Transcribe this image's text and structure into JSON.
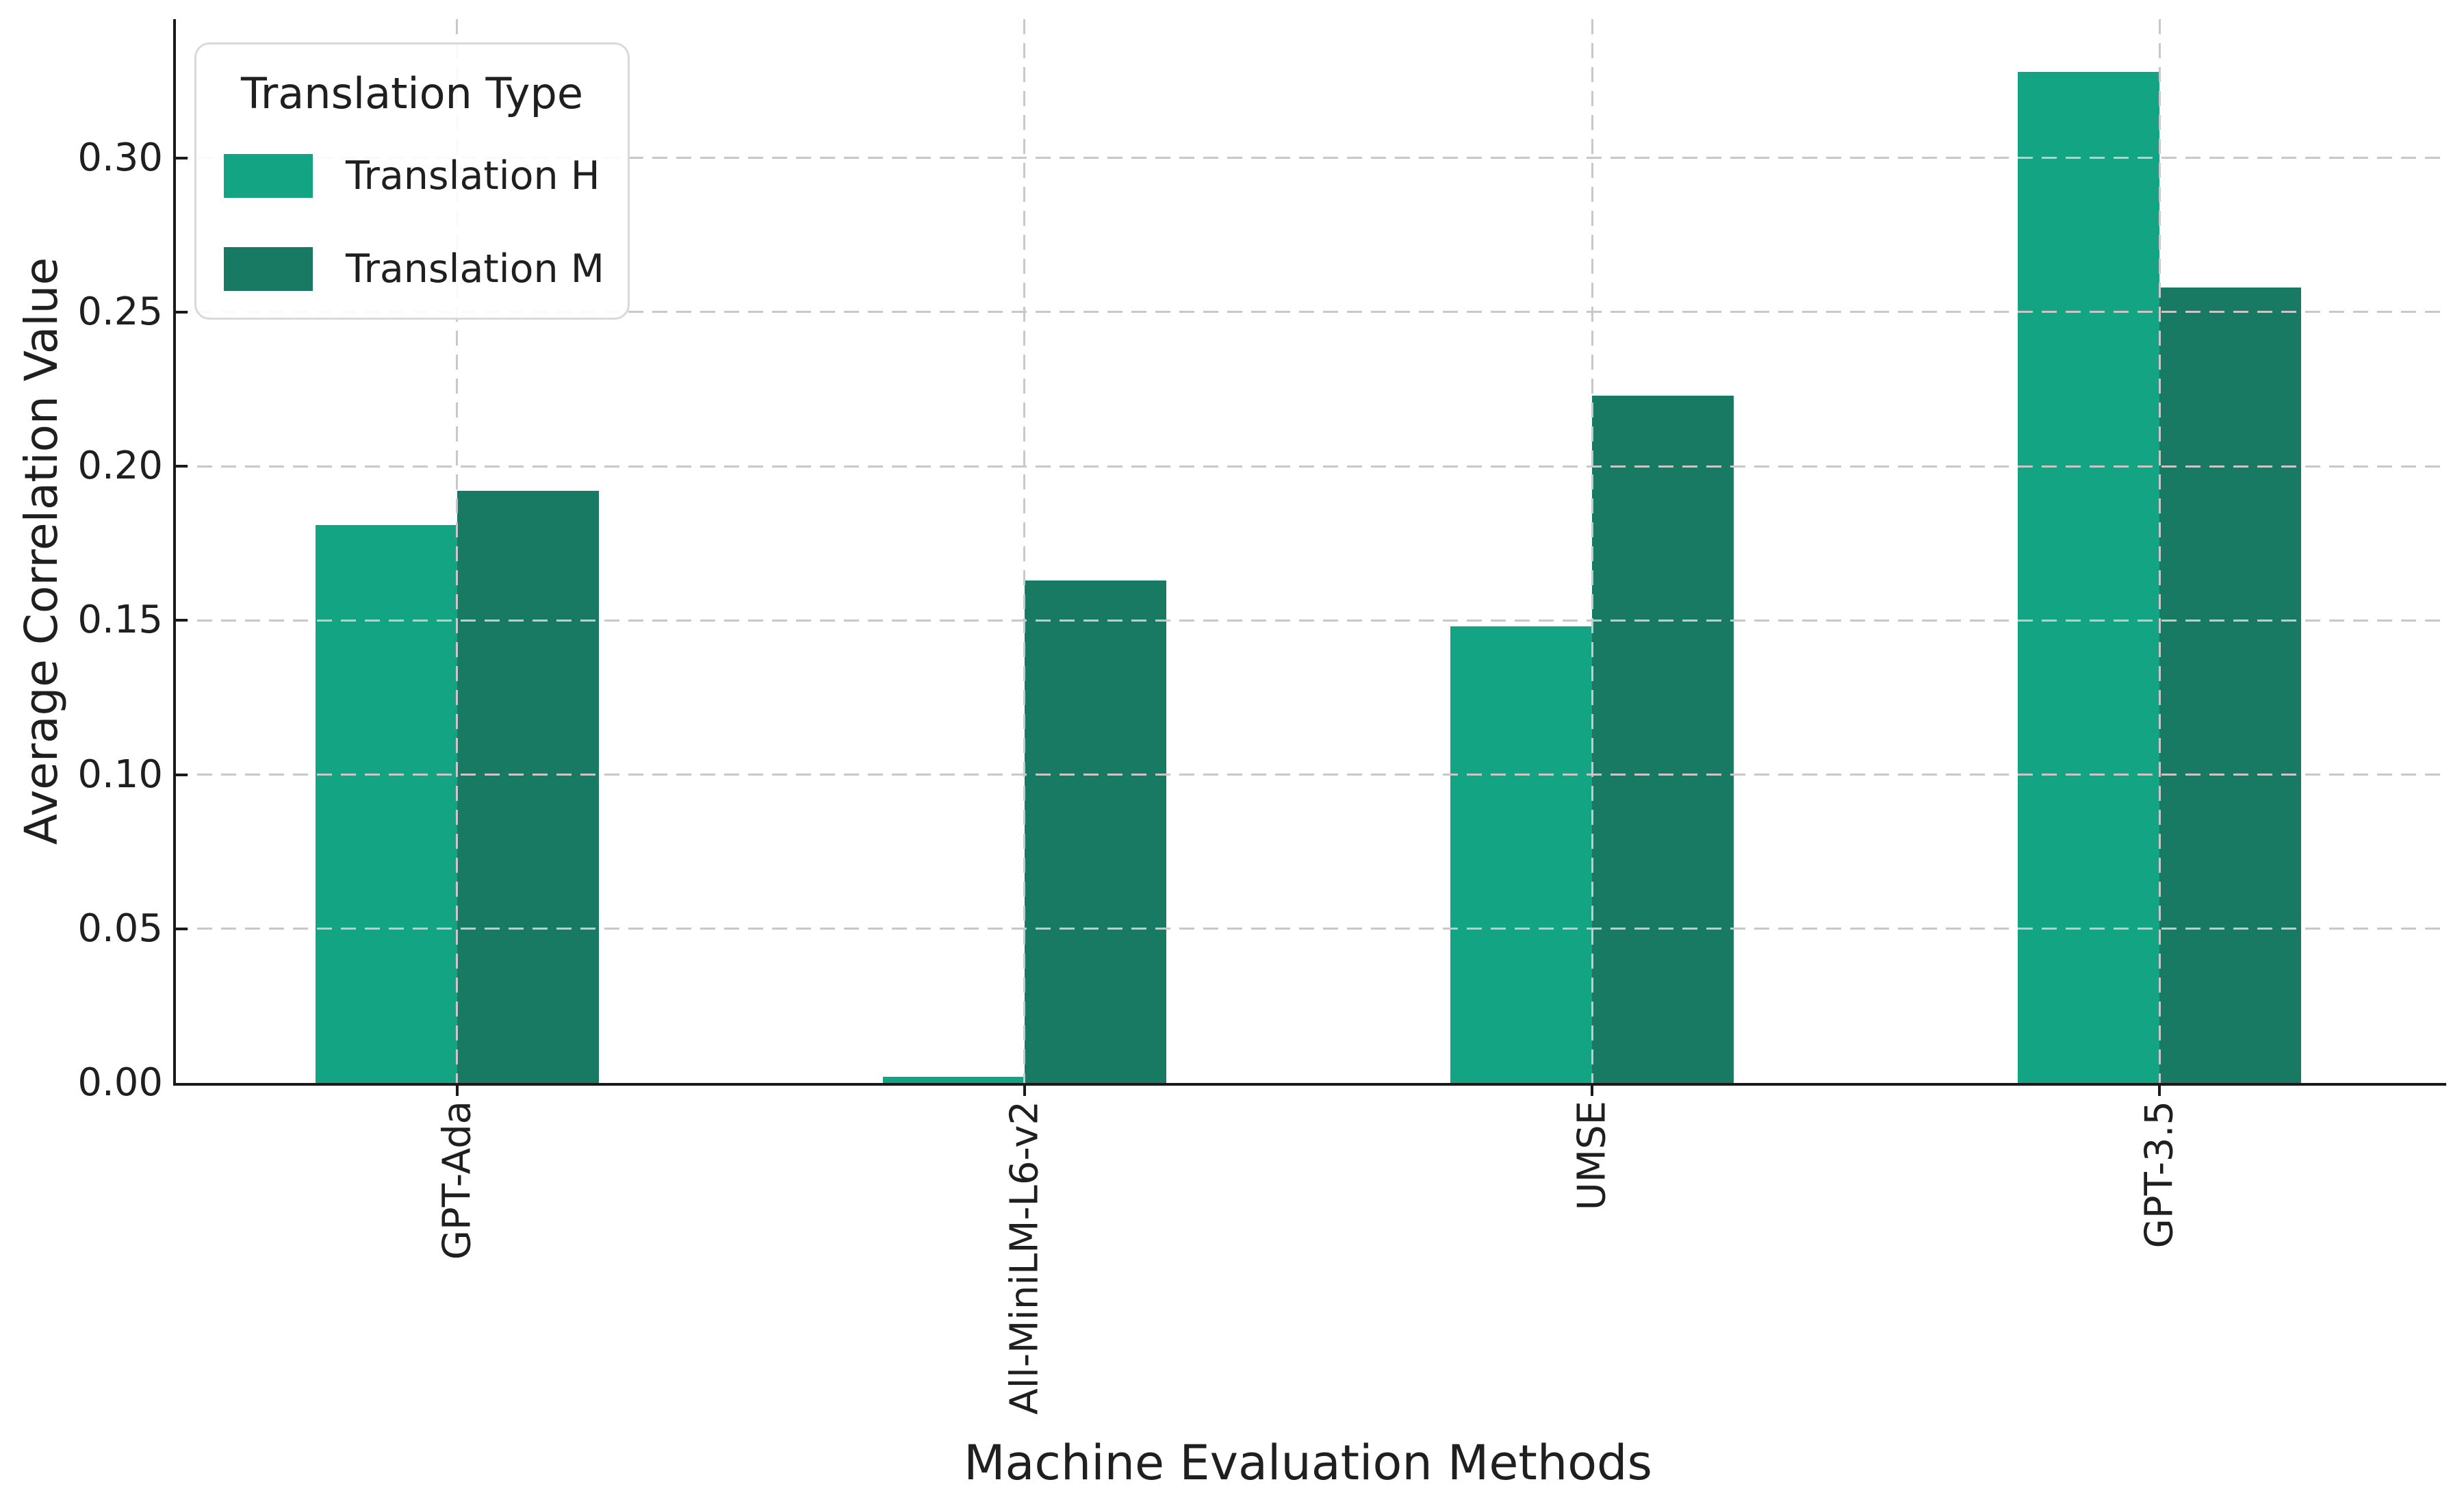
{
  "chart_data": {
    "type": "bar",
    "title": "",
    "xlabel": "Machine Evaluation Methods",
    "ylabel": "Average Correlation Value",
    "categories": [
      "GPT-Ada",
      "All-MiniLM-L6-v2",
      "UMSE",
      "GPT-3.5"
    ],
    "series": [
      {
        "name": "Translation H",
        "color": "#12a483",
        "values": [
          0.181,
          0.002,
          0.148,
          0.328
        ]
      },
      {
        "name": "Translation M",
        "color": "#187a63",
        "values": [
          0.192,
          0.163,
          0.223,
          0.258
        ]
      }
    ],
    "ylim": [
      0,
      0.345
    ],
    "yticks": [
      {
        "value": 0.0,
        "label": "0.00"
      },
      {
        "value": 0.05,
        "label": "0.05"
      },
      {
        "value": 0.1,
        "label": "0.10"
      },
      {
        "value": 0.15,
        "label": "0.15"
      },
      {
        "value": 0.2,
        "label": "0.20"
      },
      {
        "value": 0.25,
        "label": "0.25"
      },
      {
        "value": 0.3,
        "label": "0.30"
      }
    ],
    "legend": {
      "title": "Translation Type",
      "position": "upper left"
    },
    "grid": {
      "style": "dashed",
      "color": "#c8c8c8",
      "horizontal": true,
      "vertical": true,
      "above_bars": true
    },
    "bar_group_width_fraction": 0.5,
    "xtick_rotation_deg": 90
  },
  "colors": {
    "axis": "#1a1a1a",
    "text": "#1f1f1f",
    "background": "#ffffff",
    "grid": "#c8c8c8",
    "legend_border": "#d9d9d9"
  }
}
